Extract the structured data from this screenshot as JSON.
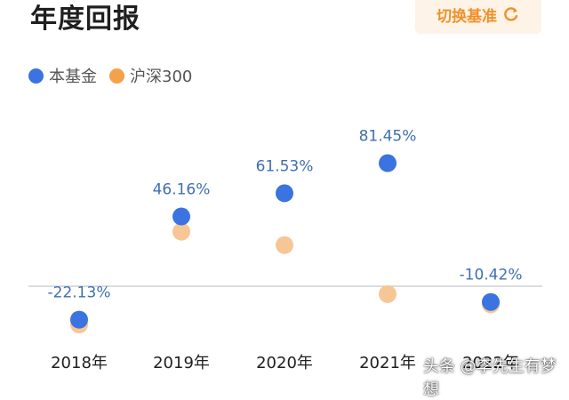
{
  "header": {
    "title": "年度回报",
    "switch_label": "切换基准"
  },
  "colors": {
    "fund": "#3b73e0",
    "benchmark": "#f6c795",
    "benchmark_legend": "#f3a24a",
    "label": "#3f6fb0",
    "baseline": "#c5c8cd"
  },
  "watermark": "头条 @李先生有梦想",
  "chart_data": {
    "type": "scatter",
    "categories": [
      "2018年",
      "2019年",
      "2020年",
      "2021年",
      "2022年"
    ],
    "series": [
      {
        "name": "本基金",
        "values": [
          -22.13,
          46.16,
          61.53,
          81.45,
          -10.42
        ],
        "labels": [
          "-22.13%",
          "46.16%",
          "61.53%",
          "81.45%",
          "-10.42%"
        ]
      },
      {
        "name": "沪深300",
        "values": [
          -25.3,
          36.1,
          27.2,
          -5.2,
          -12.0
        ]
      }
    ],
    "ylim": [
      -30,
      100
    ],
    "grid": false,
    "baseline": 0,
    "legend_position": "top-left"
  }
}
